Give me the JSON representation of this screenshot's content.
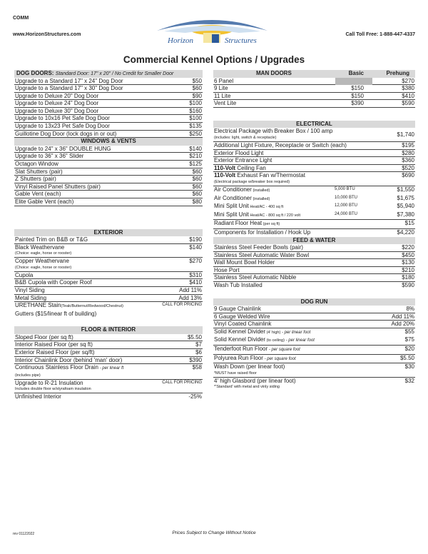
{
  "header": {
    "code": "COMM",
    "website": "www.HorizonStructures.com",
    "phone": "Call Toll Free:  1-888-447-4337",
    "logo_text": "Horizon Structures",
    "title": "Commercial Kennel Options / Upgrades"
  },
  "colors": {
    "header_bg": "#d9d9d9",
    "logo_blue": "#2b5a9a",
    "logo_sun": "#f2c230"
  },
  "dog_doors": {
    "title": "DOG DOORS:",
    "subtitle": "Standard Door:  17\" x 20\" / No Credit for Smaller Door",
    "items": [
      {
        "label": "Upgrade to a Standard 17\" x 24\" Dog Door",
        "price": "$50"
      },
      {
        "label": "Upgrade to a Standard 17\" x 30\" Dog Door",
        "price": "$60"
      },
      {
        "label": "Upgrade to Deluxe 20\" Dog Door",
        "price": "$90"
      },
      {
        "label": "Upgrade to Deluxe 24\" Dog Door",
        "price": "$100"
      },
      {
        "label": "Upgrade to Deluxe 30\" Dog Door",
        "price": "$160"
      },
      {
        "label": "Upgrade to 10x16 Pet Safe Dog Door",
        "price": "$100"
      },
      {
        "label": "Upgrade to 13x23 Pet Safe Dog Door",
        "price": "$135"
      },
      {
        "label": "Guillotine Dog Door (lock dogs in or out)",
        "price": "$250"
      }
    ]
  },
  "windows": {
    "title": "WINDOWS & VENTS",
    "items": [
      {
        "label": "Upgrade to 24\" x 36\" DOUBLE HUNG",
        "price": "$140"
      },
      {
        "label": "Upgrade to 36\" x 36\" Slider",
        "price": "$210"
      },
      {
        "label": "Octagon Window",
        "price": "$125"
      },
      {
        "label": "Slat Shutters (pair)",
        "price": "$60"
      },
      {
        "label": "Z Shutters (pair)",
        "price": "$60"
      },
      {
        "label": "Vinyl Raised Panel Shutters (pair)",
        "price": "$60"
      },
      {
        "label": "Gable Vent (each)",
        "price": "$60"
      },
      {
        "label": "Elite Gable Vent (each)",
        "price": "$80"
      }
    ]
  },
  "exterior": {
    "title": "EXTERIOR",
    "items": [
      {
        "label": "Painted Trim on B&B or T&G",
        "price": "$190"
      },
      {
        "label": "Black Weathervane",
        "price": "$140",
        "sub": "(Choice:  eagle, horse or rooster)"
      },
      {
        "label": "Copper Weathervane",
        "price": "$270",
        "sub": "(Choice:  eagle, horse or rooster)"
      },
      {
        "label": "Cupola",
        "price": "$310"
      },
      {
        "label": "B&B Cupola with Cooper Roof",
        "price": "$410"
      },
      {
        "label": "Vinyl Siding",
        "price": "Add 11%"
      },
      {
        "label": "Metal Siding",
        "price": "Add 13%"
      },
      {
        "label": "URETHANE Stain",
        "note": "(Teak/Butternut/Redwood/Chestnut)",
        "call": "CALL FOR PRICING",
        "nb": true
      },
      {
        "label": "Gutters ($15/linear ft of building)",
        "nb": true
      }
    ]
  },
  "floor": {
    "title": "FLOOR & INTERIOR",
    "items": [
      {
        "label": "Sloped Floor (per sq ft)",
        "price": "$5.50"
      },
      {
        "label": "Interior Raised Floor (per sq ft)",
        "price": "$7"
      },
      {
        "label": "Exterior Raised Floor (per sq/ft)",
        "price": "$6"
      },
      {
        "label": "Interior Chainlink Door (behind 'man' door)",
        "price": "$390"
      },
      {
        "label": "Continuous Stainless Floor Drain",
        "italic": " - per linear ft",
        "price": "$58",
        "sub": "(includes pipe)"
      },
      {
        "label": "Upgrade to R-21 Insulation",
        "call": "CALL FOR PRICING",
        "sub": "Includes double floor w/styrafoam insulation"
      },
      {
        "label": "Unfinished Interior",
        "price": "-25%",
        "nb": true
      }
    ]
  },
  "man_doors": {
    "title": "MAN DOORS",
    "col_basic": "Basic",
    "col_prehung": "Prehung",
    "items": [
      {
        "label": "6 Panel",
        "basic": "",
        "prehung": "$270"
      },
      {
        "label": "9 Lite",
        "basic": "$150",
        "prehung": "$380"
      },
      {
        "label": "11 Lite",
        "basic": "$150",
        "prehung": "$410"
      },
      {
        "label": "Vent Lite",
        "basic": "$390",
        "prehung": "$590"
      }
    ]
  },
  "electrical": {
    "title": "ELECTRICAL",
    "items": [
      {
        "label": "Electrical Package with Breaker Box / 100 amp",
        "price": "$1,740",
        "sub": "(includes:  light, switch & receptacle)",
        "two": true
      },
      {
        "label": "Additional Light Fixture, Receptacle or Switch (each)",
        "price": "$195"
      },
      {
        "label": "Exterior Flood Light",
        "price": "$280"
      },
      {
        "label": "Exterior Entrance Light",
        "price": "$360"
      },
      {
        "bold": "110-Volt",
        "label": " Ceiling Fan",
        "price": "$520"
      },
      {
        "bold": "110-Volt",
        "label": " Exhaust Fan w/Thermostat",
        "price": "$690",
        "sub": "(Electrical package w/breaker box required)"
      },
      {
        "label": "Air Conditioner",
        "note": " (installed)",
        "btu": "5,000 BTU",
        "price": "$1,550",
        "nb": true
      },
      {
        "label": "Air Conditioner",
        "note": " (installed)",
        "btu": "10,000 BTU",
        "price": "$1,675",
        "nb": true
      },
      {
        "label": "Mini Split Unit",
        "note": " Heat/AC - 400 sq ft",
        "btu": "12,000 BTU",
        "price": "$5,940",
        "nb": true
      },
      {
        "label": "Mini Split Unit",
        "note": " Heat/AC - 800 sq ft / 220 volt",
        "btu": "24,000 BTU",
        "price": "$7,380"
      },
      {
        "label": "Radiant Floor Heat",
        "note": " (per sq ft)",
        "price": "$15"
      },
      {
        "label": "Components for Installation / Hook Up",
        "price": "$4,220",
        "nb": true
      }
    ]
  },
  "feed_water": {
    "title": "FEED & WATER",
    "items": [
      {
        "label": "Stainless Steel Feeder Bowls (pair)",
        "price": "$220"
      },
      {
        "label": "Stainless Steel Automatic Water Bowl",
        "price": "$450"
      },
      {
        "label": "Wall Mount Bowl Holder",
        "price": "$130"
      },
      {
        "label": "Hose Port",
        "price": "$210"
      },
      {
        "label": "Stainless Steel Automatic Nibble",
        "price": "$180"
      },
      {
        "label": "Wash Tub Installed",
        "price": "$590",
        "nb": true
      }
    ]
  },
  "dog_run": {
    "title": "DOG RUN",
    "items": [
      {
        "label": "9 Gauge Chainlink",
        "price": "8%"
      },
      {
        "label": "6 Gauge Welded Wire",
        "price": "Add 11%"
      },
      {
        "label": "Vinyl Coated Chainlink",
        "price": "Add 20%"
      },
      {
        "label": "Solid Kennel Divider",
        "note": " (4' high)",
        "italic": " - per linear foot",
        "price": "$55",
        "nb": true
      },
      {
        "label": "Solid Kennel Divider",
        "note": " (to ceiling)",
        "italic": " - per linear foot",
        "price": "$75"
      },
      {
        "label": "Tenderfoot Run Floor",
        "italic": " - per square foot",
        "price": "$20"
      },
      {
        "label": "Polyurea Run Floor",
        "italic": " - per square foot",
        "price": "$5.50"
      },
      {
        "label": "Wash Down (per linear foot)",
        "price": "$30",
        "sub": "*MUST have raised floor"
      },
      {
        "label": "4' high Glasbord (per linear foot)",
        "price": "$32",
        "sub": "*'Standard' with metal and vinly siding",
        "nb": true
      }
    ]
  },
  "footer": {
    "rev": "rev 01122022",
    "notice": "Prices Subject to Change Without Notice"
  }
}
